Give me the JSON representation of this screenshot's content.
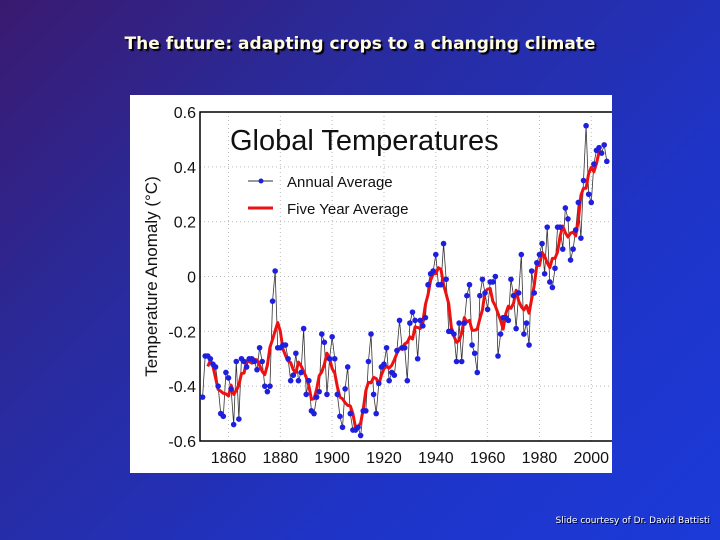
{
  "slide": {
    "title": "The future: adapting crops to a changing climate",
    "credit": "Slide courtesy of Dr. David Battisti"
  },
  "chart_data": {
    "type": "line",
    "title": "Global Temperatures",
    "xlabel": "",
    "ylabel": "Temperature Anomaly (°C)",
    "xlim": [
      1849,
      2008
    ],
    "ylim": [
      -0.6,
      0.6
    ],
    "xticks": [
      1860,
      1880,
      1900,
      1920,
      1940,
      1960,
      1980,
      2000
    ],
    "yticks": [
      "-0.6",
      "-0.4",
      "-0.2",
      "0",
      "0.2",
      "0.4",
      "0.6"
    ],
    "grid": true,
    "legend_position": "top-left",
    "colors": {
      "annual_line": "#333333",
      "annual_marker": "#1f1fe0",
      "five_year": "#ee1111"
    },
    "series": [
      {
        "name": "Annual Average",
        "x_start": 1850,
        "values": [
          -0.44,
          -0.29,
          -0.29,
          -0.3,
          -0.32,
          -0.33,
          -0.4,
          -0.5,
          -0.51,
          -0.35,
          -0.37,
          -0.41,
          -0.54,
          -0.31,
          -0.52,
          -0.3,
          -0.31,
          -0.33,
          -0.3,
          -0.3,
          -0.31,
          -0.34,
          -0.26,
          -0.31,
          -0.4,
          -0.42,
          -0.4,
          -0.09,
          0.02,
          -0.26,
          -0.26,
          -0.25,
          -0.25,
          -0.3,
          -0.38,
          -0.36,
          -0.28,
          -0.38,
          -0.35,
          -0.19,
          -0.43,
          -0.38,
          -0.49,
          -0.5,
          -0.44,
          -0.42,
          -0.21,
          -0.24,
          -0.43,
          -0.3,
          -0.22,
          -0.3,
          -0.43,
          -0.51,
          -0.55,
          -0.41,
          -0.33,
          -0.5,
          -0.56,
          -0.56,
          -0.55,
          -0.58,
          -0.49,
          -0.49,
          -0.31,
          -0.21,
          -0.43,
          -0.5,
          -0.39,
          -0.33,
          -0.32,
          -0.26,
          -0.38,
          -0.35,
          -0.36,
          -0.27,
          -0.16,
          -0.26,
          -0.26,
          -0.38,
          -0.17,
          -0.13,
          -0.16,
          -0.3,
          -0.16,
          -0.18,
          -0.15,
          -0.03,
          0.01,
          0.02,
          0.08,
          -0.03,
          -0.03,
          0.12,
          -0.01,
          -0.2,
          -0.2,
          -0.21,
          -0.31,
          -0.17,
          -0.31,
          -0.17,
          -0.07,
          -0.03,
          -0.25,
          -0.28,
          -0.35,
          -0.07,
          -0.01,
          -0.06,
          -0.12,
          -0.02,
          -0.02,
          0.0,
          -0.29,
          -0.21,
          -0.15,
          -0.15,
          -0.16,
          -0.01,
          -0.07,
          -0.19,
          -0.06,
          0.08,
          -0.21,
          -0.17,
          -0.25,
          0.02,
          -0.06,
          0.05,
          0.08,
          0.12,
          0.01,
          0.18,
          -0.02,
          -0.04,
          0.03,
          0.18,
          0.18,
          0.1,
          0.25,
          0.21,
          0.06,
          0.1,
          0.17,
          0.27,
          0.14,
          0.35,
          0.55,
          0.3,
          0.27,
          0.41,
          0.46,
          0.47,
          0.45,
          0.48,
          0.42
        ]
      },
      {
        "name": "Five Year Average",
        "derived_from": "Annual Average",
        "window": 5
      }
    ]
  }
}
